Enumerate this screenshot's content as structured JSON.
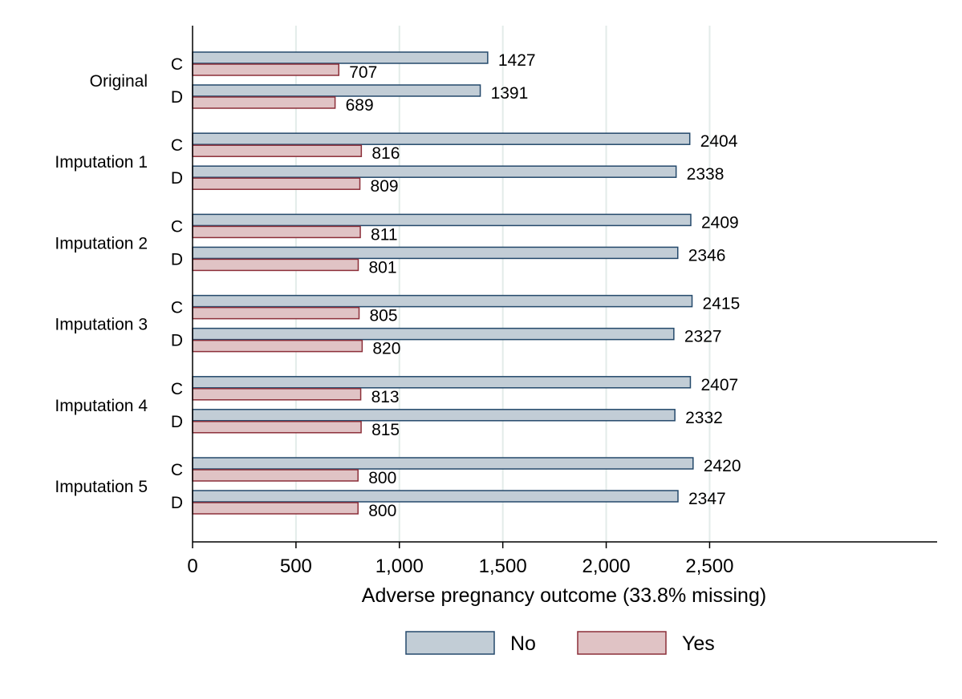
{
  "chart_data": {
    "type": "bar",
    "orientation": "horizontal",
    "xlabel": "Adverse pregnancy outcome (33.8% missing)",
    "xlim": [
      0,
      3600
    ],
    "xticks": [
      0,
      500,
      1000,
      1500,
      2000,
      2500
    ],
    "xtick_labels": [
      "0",
      "500",
      "1,000",
      "1,500",
      "2,000",
      "2,500"
    ],
    "grid": true,
    "legend_position": "bottom",
    "series": [
      {
        "name": "No",
        "color": "#c2cdd6",
        "edge": "#24496b"
      },
      {
        "name": "Yes",
        "color": "#e0c3c5",
        "edge": "#8c2f39"
      }
    ],
    "groups": [
      {
        "label": "Original",
        "rows": [
          {
            "label": "C",
            "values": [
              1427,
              707
            ]
          },
          {
            "label": "D",
            "values": [
              1391,
              689
            ]
          }
        ]
      },
      {
        "label": "Imputation 1",
        "rows": [
          {
            "label": "C",
            "values": [
              2404,
              816
            ]
          },
          {
            "label": "D",
            "values": [
              2338,
              809
            ]
          }
        ]
      },
      {
        "label": "Imputation 2",
        "rows": [
          {
            "label": "C",
            "values": [
              2409,
              811
            ]
          },
          {
            "label": "D",
            "values": [
              2346,
              801
            ]
          }
        ]
      },
      {
        "label": "Imputation 3",
        "rows": [
          {
            "label": "C",
            "values": [
              2415,
              805
            ]
          },
          {
            "label": "D",
            "values": [
              2327,
              820
            ]
          }
        ]
      },
      {
        "label": "Imputation 4",
        "rows": [
          {
            "label": "C",
            "values": [
              2407,
              813
            ]
          },
          {
            "label": "D",
            "values": [
              2332,
              815
            ]
          }
        ]
      },
      {
        "label": "Imputation 5",
        "rows": [
          {
            "label": "C",
            "values": [
              2420,
              800
            ]
          },
          {
            "label": "D",
            "values": [
              2347,
              800
            ]
          }
        ]
      }
    ]
  }
}
